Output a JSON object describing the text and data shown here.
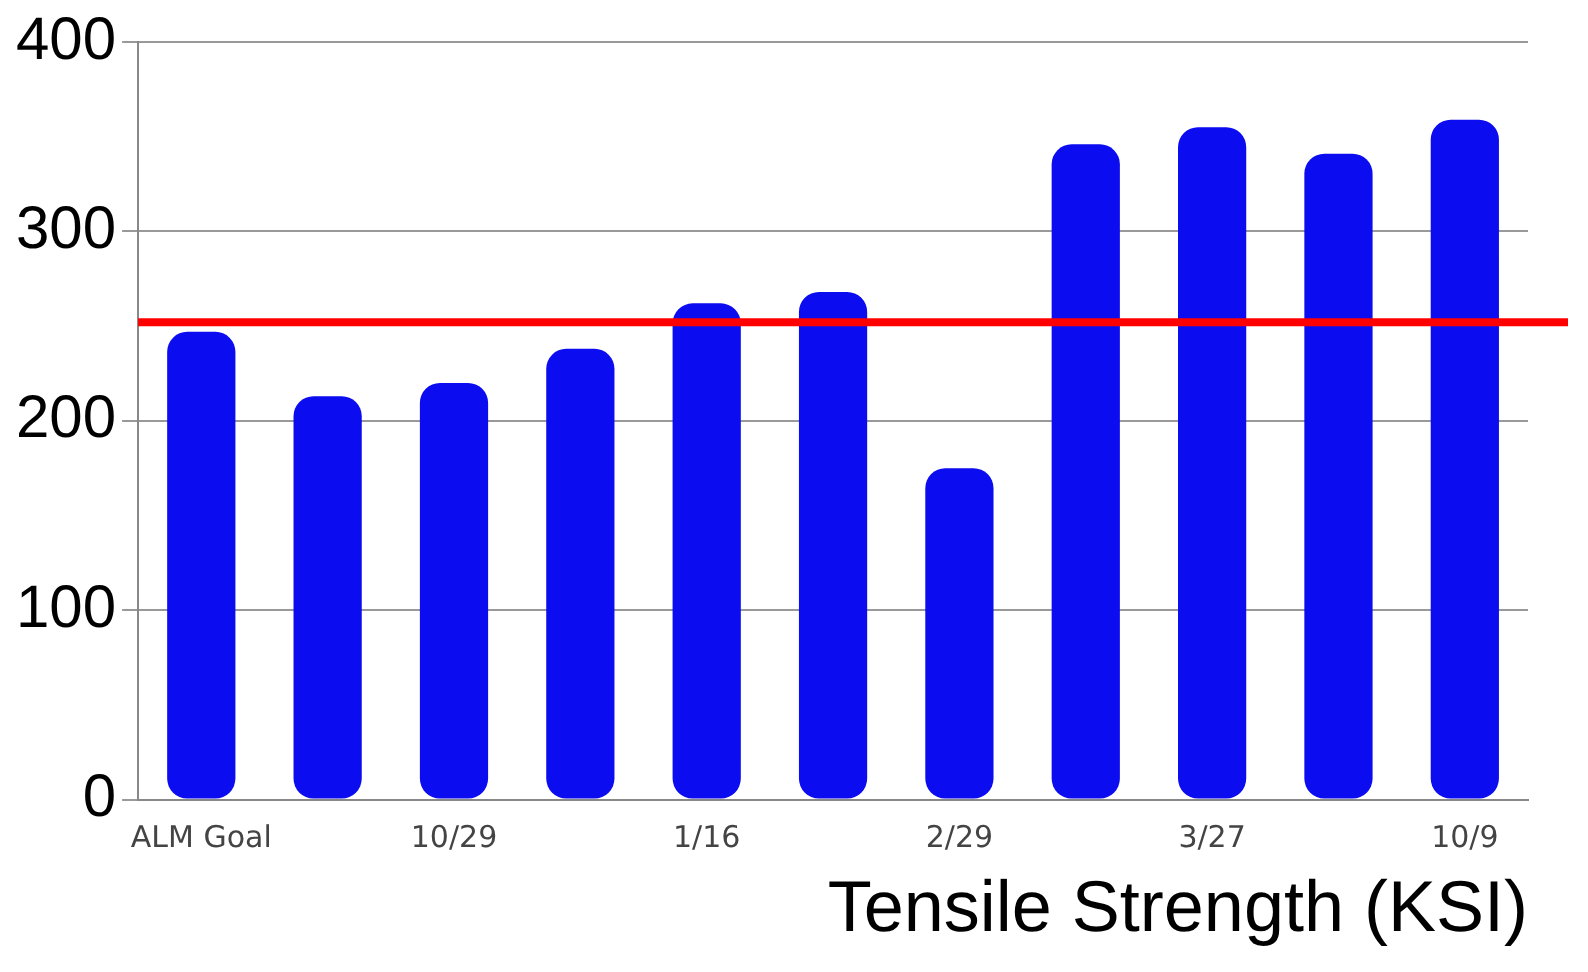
{
  "chart_data": {
    "type": "bar",
    "xlabel": "Tensile Strength (KSI)",
    "categories": [
      "ALM Goal",
      null,
      "10/29",
      null,
      "1/16",
      null,
      "2/29",
      null,
      "3/27",
      null,
      "10/9"
    ],
    "values": [
      247,
      213,
      220,
      238,
      262,
      268,
      175,
      346,
      355,
      341,
      359
    ],
    "color": "#0c0cf0",
    "ylim": [
      0,
      400
    ],
    "yticks": [
      0,
      100,
      200,
      300,
      400
    ],
    "grid": "y",
    "ref_lines": [
      {
        "axis": "y",
        "value": 252,
        "color": "#ff0000"
      }
    ]
  }
}
